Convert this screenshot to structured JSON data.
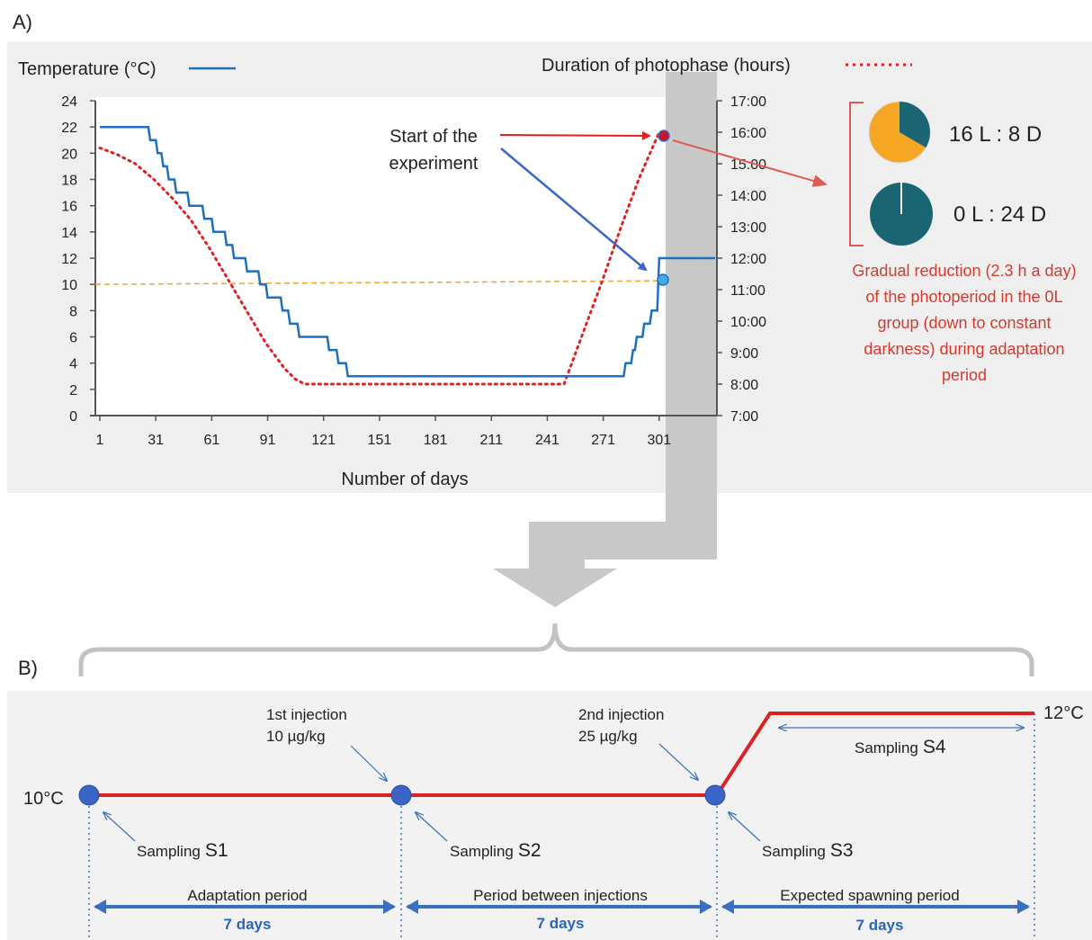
{
  "panel_a": {
    "label": "A)",
    "legend_temp": "Temperature (°C)",
    "legend_photo": "Duration of photophase (hours)",
    "xlabel": "Number of days",
    "annotation_start": [
      "Start of the",
      "experiment"
    ],
    "pie_16": "16 L : 8 D",
    "pie_0": "0 L : 24 D",
    "note_lines": [
      "Gradual reduction (2.3 h a day)",
      "of the photoperiod in the 0L",
      "group (down to constant",
      "darkness) during adaptation",
      "period"
    ],
    "colors": {
      "temperature": "#1f6fbf",
      "photoperiod": "#e02020",
      "threshold": "#f2a22e",
      "pie_light": "#f5a623",
      "pie_dark": "#1a6573",
      "note": "#d63a2e",
      "panel_bg": "#efefef"
    }
  },
  "chart_data": {
    "type": "line",
    "x_ticks": [
      "1",
      "31",
      "61",
      "91",
      "121",
      "151",
      "181",
      "211",
      "241",
      "271",
      "301"
    ],
    "y_left_ticks": [
      "0",
      "2",
      "4",
      "6",
      "8",
      "10",
      "12",
      "14",
      "16",
      "18",
      "20",
      "22",
      "24"
    ],
    "y_right_ticks": [
      "7:00",
      "8:00",
      "9:00",
      "10:00",
      "11:00",
      "12:00",
      "13:00",
      "14:00",
      "15:00",
      "16:00",
      "17:00"
    ],
    "xlim": [
      1,
      331
    ],
    "ylim_left": [
      0,
      24
    ],
    "ylim_right_hours": [
      7,
      17
    ],
    "threshold_temperature": 10,
    "series": [
      {
        "axis": "left",
        "style": "solid",
        "x": [
          1,
          27,
          28,
          31,
          32,
          34,
          35,
          37,
          38,
          41,
          42,
          48,
          49,
          56,
          57,
          61,
          62,
          68,
          69,
          72,
          73,
          79,
          80,
          86,
          87,
          90,
          91,
          98,
          99,
          102,
          103,
          107,
          108,
          123,
          124,
          128,
          129,
          133,
          134,
          282,
          283,
          286,
          287,
          288,
          289,
          292,
          293,
          296,
          297,
          300,
          301,
          331
        ],
        "y": [
          22,
          22,
          21,
          21,
          20,
          20,
          19,
          19,
          18,
          18,
          17,
          17,
          16,
          16,
          15,
          15,
          14,
          14,
          13,
          13,
          12,
          12,
          11,
          11,
          10,
          10,
          9,
          9,
          8,
          8,
          7,
          7,
          6,
          6,
          5,
          5,
          4,
          4,
          3,
          3,
          4,
          4,
          5,
          5,
          6,
          6,
          7,
          7,
          8,
          8,
          12,
          12
        ]
      },
      {
        "axis": "right",
        "style": "dotted",
        "x": [
          1,
          10,
          20,
          30,
          40,
          50,
          60,
          70,
          80,
          90,
          100,
          106,
          111,
          120,
          150,
          180,
          210,
          240,
          250,
          260,
          270,
          280,
          290,
          301
        ],
        "y": [
          15.5,
          15.3,
          15.0,
          14.5,
          13.9,
          13.2,
          12.3,
          11.3,
          10.3,
          9.3,
          8.5,
          8.15,
          8.0,
          8.0,
          8.0,
          8.0,
          8.0,
          8.0,
          8.0,
          9.6,
          11.2,
          12.9,
          14.5,
          16.0
        ]
      }
    ]
  },
  "panel_b": {
    "label": "B)",
    "temp_low": "10°C",
    "temp_high": "12°C",
    "injection1": [
      "1st injection",
      "10 µg/kg"
    ],
    "injection2": [
      "2nd injection",
      "25 µg/kg"
    ],
    "sampling_prefix": "Sampling",
    "samplings": [
      "S1",
      "S2",
      "S3",
      "S4"
    ],
    "periods": [
      "Adaptation period",
      "Period between injections",
      "Expected spawning period"
    ],
    "duration": "7 days",
    "colors": {
      "line": "#e02020",
      "dot": "#3a65c7",
      "arrow": "#3a6fc0",
      "days": "#2a66b8"
    }
  }
}
